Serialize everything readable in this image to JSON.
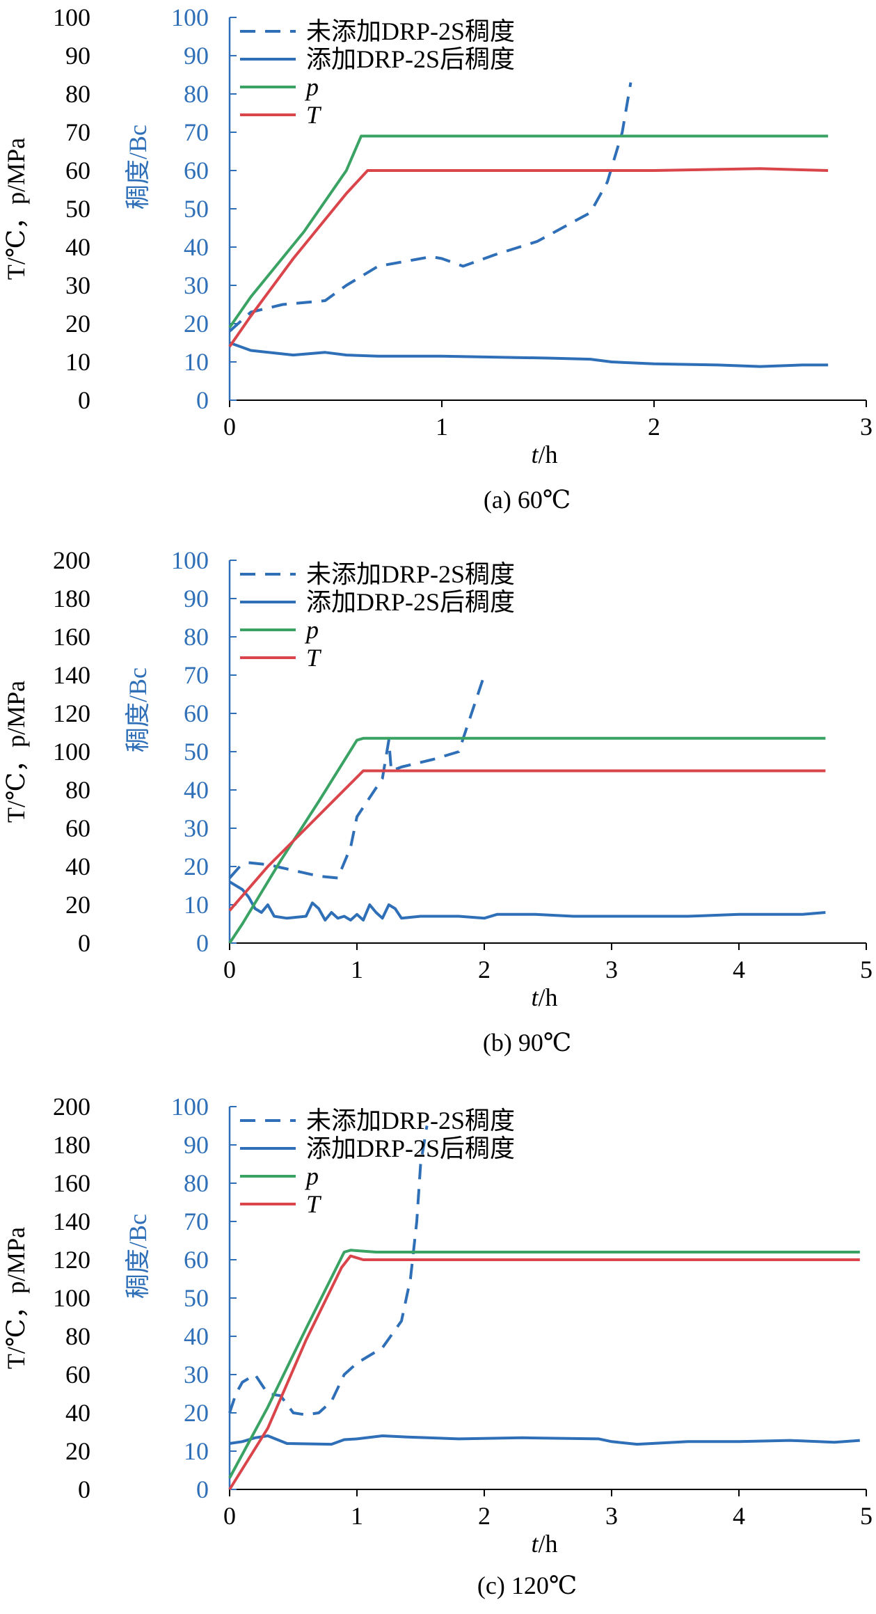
{
  "colors": {
    "viscosity": "#2e6fb7",
    "pressure": "#3aa364",
    "temperature": "#d9454a",
    "axis": "#000000",
    "right_axis": "#2e6fb7"
  },
  "legend": [
    {
      "label": "未添加DRP-2S稠度",
      "style": "dashed",
      "color": "#2e6fb7"
    },
    {
      "label": "添加DRP-2S后稠度",
      "style": "solid",
      "color": "#2e6fb7"
    },
    {
      "label": "p",
      "style": "solid",
      "color": "#3aa364",
      "italic": true
    },
    {
      "label": "T",
      "style": "solid",
      "color": "#d9454a",
      "italic": true
    }
  ],
  "chart_data": [
    {
      "type": "line",
      "caption": "(a) 60℃",
      "xlabel_var": "t",
      "xlabel_unit": "/h",
      "ylabel_left": "T/℃，p/MPa",
      "ylabel_right": "稠度/Bc",
      "xlim": [
        0,
        3
      ],
      "xticks": [
        0,
        1,
        2,
        3
      ],
      "ylim_left": [
        0,
        100
      ],
      "yticks_left": [
        0,
        10,
        20,
        30,
        40,
        50,
        60,
        70,
        80,
        90,
        100
      ],
      "ylim_right": [
        0,
        100
      ],
      "yticks_right": [
        0,
        10,
        20,
        30,
        40,
        50,
        60,
        70,
        80,
        90,
        100
      ],
      "series": [
        {
          "name": "未添加DRP-2S稠度",
          "axis": "right",
          "style": "dashed",
          "color": "#2e6fb7",
          "x": [
            0,
            0.1,
            0.25,
            0.45,
            0.55,
            0.7,
            0.85,
            0.95,
            1.0,
            1.1,
            1.25,
            1.45,
            1.6,
            1.7,
            1.78,
            1.85,
            1.89
          ],
          "y": [
            18,
            23,
            25,
            26,
            30,
            35,
            36.5,
            37.5,
            37,
            35,
            38,
            41.5,
            46,
            49,
            57,
            70,
            83
          ]
        },
        {
          "name": "添加DRP-2S后稠度",
          "axis": "right",
          "style": "solid",
          "color": "#2e6fb7",
          "x": [
            0,
            0.1,
            0.3,
            0.45,
            0.55,
            0.7,
            1.0,
            1.2,
            1.5,
            1.7,
            1.8,
            2.0,
            2.3,
            2.5,
            2.7,
            2.82
          ],
          "y": [
            15,
            13,
            11.8,
            12.5,
            11.8,
            11.5,
            11.5,
            11.3,
            11,
            10.7,
            10,
            9.5,
            9.2,
            8.8,
            9.2,
            9.2
          ]
        },
        {
          "name": "p",
          "axis": "left",
          "style": "solid",
          "color": "#3aa364",
          "x": [
            0,
            0.1,
            0.35,
            0.55,
            0.62,
            2.82
          ],
          "y": [
            19,
            27,
            44,
            60,
            69,
            69
          ]
        },
        {
          "name": "T",
          "axis": "left",
          "style": "solid",
          "color": "#d9454a",
          "x": [
            0,
            0.1,
            0.3,
            0.55,
            0.65,
            2.0,
            2.5,
            2.82
          ],
          "y": [
            14,
            22,
            37,
            54,
            60,
            60,
            60.5,
            60
          ]
        }
      ]
    },
    {
      "type": "line",
      "caption": "(b) 90℃",
      "xlabel_var": "t",
      "xlabel_unit": "/h",
      "ylabel_left": "T/℃，p/MPa",
      "ylabel_right": "稠度/Bc",
      "xlim": [
        0,
        5
      ],
      "xticks": [
        0,
        1,
        2,
        3,
        4,
        5
      ],
      "ylim_left": [
        0,
        200
      ],
      "yticks_left": [
        0,
        20,
        40,
        60,
        80,
        100,
        120,
        140,
        160,
        180,
        200
      ],
      "ylim_right": [
        0,
        100
      ],
      "yticks_right": [
        0,
        10,
        20,
        30,
        40,
        50,
        60,
        70,
        80,
        90,
        100
      ],
      "series": [
        {
          "name": "未添加DRP-2S稠度",
          "axis": "right",
          "style": "dashed",
          "color": "#2e6fb7",
          "x": [
            0,
            0.08,
            0.15,
            0.3,
            0.5,
            0.7,
            0.85,
            0.95,
            1.0,
            1.1,
            1.2,
            1.25,
            1.27,
            1.35,
            1.6,
            1.8,
            1.9,
            2.0
          ],
          "y": [
            17,
            20,
            21,
            20.5,
            19,
            17.5,
            17,
            25,
            33,
            38,
            43,
            53,
            45,
            46,
            48,
            50,
            60,
            70
          ]
        },
        {
          "name": "添加DRP-2S后稠度",
          "axis": "right",
          "style": "solid",
          "color": "#2e6fb7",
          "x": [
            0,
            0.1,
            0.15,
            0.2,
            0.25,
            0.3,
            0.35,
            0.45,
            0.6,
            0.65,
            0.7,
            0.75,
            0.8,
            0.85,
            0.9,
            0.95,
            1.0,
            1.05,
            1.1,
            1.15,
            1.2,
            1.25,
            1.3,
            1.35,
            1.5,
            1.8,
            2.0,
            2.1,
            2.4,
            2.7,
            3.0,
            3.2,
            3.6,
            4.0,
            4.5,
            4.68
          ],
          "y": [
            16,
            14,
            12,
            9,
            8,
            10,
            7,
            6.5,
            7,
            10.5,
            9,
            6,
            8,
            6.5,
            7,
            6,
            7.5,
            6,
            10,
            8,
            6.5,
            10,
            9,
            6.5,
            7,
            7,
            6.5,
            7.5,
            7.5,
            7,
            7,
            7,
            7,
            7.5,
            7.5,
            8
          ]
        },
        {
          "name": "p",
          "axis": "left",
          "style": "solid",
          "color": "#3aa364",
          "x": [
            0,
            0.1,
            0.4,
            0.7,
            1.0,
            1.05,
            4.68
          ],
          "y": [
            0,
            10,
            43,
            74,
            106,
            107,
            107
          ]
        },
        {
          "name": "T",
          "axis": "left",
          "style": "solid",
          "color": "#d9454a",
          "x": [
            0,
            0.3,
            0.6,
            0.9,
            1.05,
            4.68
          ],
          "y": [
            17,
            40,
            60,
            80,
            90,
            90
          ]
        }
      ]
    },
    {
      "type": "line",
      "caption": "(c) 120℃",
      "xlabel_var": "t",
      "xlabel_unit": "/h",
      "ylabel_left": "T/℃，p/MPa",
      "ylabel_right": "稠度/Bc",
      "xlim": [
        0,
        5
      ],
      "xticks": [
        0,
        1,
        2,
        3,
        4,
        5
      ],
      "ylim_left": [
        0,
        200
      ],
      "yticks_left": [
        0,
        20,
        40,
        60,
        80,
        100,
        120,
        140,
        160,
        180,
        200
      ],
      "ylim_right": [
        0,
        100
      ],
      "yticks_right": [
        0,
        10,
        20,
        30,
        40,
        50,
        60,
        70,
        80,
        90,
        100
      ],
      "series": [
        {
          "name": "未添加DRP-2S稠度",
          "axis": "right",
          "style": "dashed",
          "color": "#2e6fb7",
          "x": [
            0,
            0.05,
            0.1,
            0.2,
            0.3,
            0.4,
            0.5,
            0.6,
            0.7,
            0.8,
            0.9,
            1.0,
            1.2,
            1.35,
            1.42,
            1.47,
            1.5,
            1.55
          ],
          "y": [
            20,
            25,
            28,
            30,
            25,
            24.5,
            20,
            19.5,
            20,
            23,
            30,
            33,
            37,
            44,
            55,
            70,
            85,
            95
          ]
        },
        {
          "name": "添加DRP-2S后稠度",
          "axis": "right",
          "style": "solid",
          "color": "#2e6fb7",
          "x": [
            0,
            0.1,
            0.2,
            0.3,
            0.45,
            0.8,
            0.9,
            1.0,
            1.2,
            1.4,
            1.8,
            2.3,
            2.9,
            3.0,
            3.2,
            3.6,
            4.0,
            4.4,
            4.75,
            4.95
          ],
          "y": [
            12,
            12.5,
            13.5,
            14,
            12,
            11.8,
            13,
            13.2,
            14,
            13.7,
            13.2,
            13.5,
            13.2,
            12.5,
            11.8,
            12.5,
            12.5,
            12.8,
            12.3,
            12.8
          ]
        },
        {
          "name": "p",
          "axis": "left",
          "style": "solid",
          "color": "#3aa364",
          "x": [
            0,
            0.3,
            0.6,
            0.9,
            0.95,
            1.15,
            4.95
          ],
          "y": [
            6,
            43,
            84,
            124,
            125,
            124,
            124
          ]
        },
        {
          "name": "T",
          "axis": "left",
          "style": "solid",
          "color": "#d9454a",
          "x": [
            0,
            0.3,
            0.6,
            0.88,
            0.95,
            1.05,
            4.95
          ],
          "y": [
            0,
            32,
            78,
            116,
            122,
            120,
            120
          ]
        }
      ]
    }
  ]
}
